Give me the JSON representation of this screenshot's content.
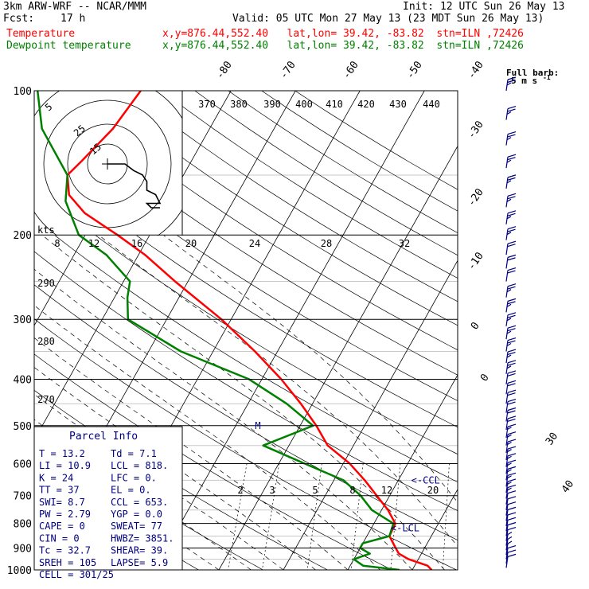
{
  "header": {
    "model": "3km ARW-WRF -- NCAR/MMM",
    "init": "Init: 12 UTC Sun 26 May 13",
    "fcst_label": "Fcst:",
    "fcst_value": "17 h",
    "valid": "Valid: 05 UTC Mon 27 May 13 (23 MDT Sun 26 May 13)",
    "temp_label": "Temperature",
    "dew_label": "Dewpoint temperature",
    "point_info": "x,y=876.44,552.40   lat,lon= 39.42, -83.82  stn=ILN ,72426",
    "full_barb": "Full barb:",
    "barb_units": "5 m s",
    "barb_units_sup": "-1"
  },
  "colors": {
    "temperature": "#ff0000",
    "dewpoint": "#008000",
    "info": "#000080"
  },
  "chart_data": {
    "type": "line",
    "pressure_levels": [
      100,
      200,
      300,
      400,
      500,
      600,
      700,
      800,
      900,
      1000
    ],
    "isotherms": [
      -90,
      -80,
      -70,
      -60,
      -50,
      -40,
      -30,
      -20,
      -10,
      0,
      10,
      20,
      30,
      40
    ],
    "isotherm_labels": [
      "-80",
      "-70",
      "-60",
      "-50",
      "-40",
      "-30",
      "-20",
      "-10",
      "0",
      "10",
      "30",
      "40"
    ],
    "dry_adiabat_labels": [
      "370",
      "380",
      "390",
      "400",
      "410",
      "420",
      "430",
      "440",
      "290",
      "280",
      "270"
    ],
    "mixing_ratio_labels": [
      "2",
      "3",
      "5",
      "8",
      "12",
      "20"
    ],
    "hodograph": {
      "units": "kts",
      "ring_labels": [
        "5",
        "25",
        "15"
      ],
      "speed_labels": [
        "8",
        "12",
        "16",
        "20",
        "24",
        "28",
        "32"
      ],
      "trace": [
        [
          0,
          0
        ],
        [
          4,
          0
        ],
        [
          6,
          1.5
        ],
        [
          8,
          2.5
        ],
        [
          9,
          4
        ],
        [
          9,
          6
        ],
        [
          11,
          7
        ],
        [
          12,
          9
        ],
        [
          9,
          9
        ],
        [
          10,
          10
        ],
        [
          12,
          10
        ]
      ]
    },
    "series": [
      {
        "name": "Temperature",
        "points": [
          [
            1000,
            23.0
          ],
          [
            980,
            22.0
          ],
          [
            950,
            18.5
          ],
          [
            925,
            16.5
          ],
          [
            900,
            15.5
          ],
          [
            850,
            13.5
          ],
          [
            800,
            13.3
          ],
          [
            750,
            11.0
          ],
          [
            700,
            8.0
          ],
          [
            650,
            4.8
          ],
          [
            600,
            1.0
          ],
          [
            550,
            -4.0
          ],
          [
            500,
            -7.5
          ],
          [
            450,
            -11.8
          ],
          [
            400,
            -17.0
          ],
          [
            350,
            -23.5
          ],
          [
            300,
            -31.5
          ],
          [
            250,
            -42.0
          ],
          [
            220,
            -49.0
          ],
          [
            200,
            -55.0
          ],
          [
            180,
            -62.0
          ],
          [
            165,
            -66.0
          ],
          [
            150,
            -68.0
          ],
          [
            140,
            -67.0
          ],
          [
            120,
            -65.0
          ],
          [
            100,
            -64.0
          ]
        ]
      },
      {
        "name": "Dewpoint temperature",
        "points": [
          [
            1000,
            18.0
          ],
          [
            980,
            12.0
          ],
          [
            950,
            10.0
          ],
          [
            925,
            12.0
          ],
          [
            900,
            10.0
          ],
          [
            880,
            10.0
          ],
          [
            850,
            13.5
          ],
          [
            800,
            13.0
          ],
          [
            750,
            8.5
          ],
          [
            700,
            5.5
          ],
          [
            650,
            1.5
          ],
          [
            600,
            -6.0
          ],
          [
            550,
            -14.0
          ],
          [
            500,
            -8.0
          ],
          [
            450,
            -14.0
          ],
          [
            400,
            -22.0
          ],
          [
            350,
            -35.0
          ],
          [
            300,
            -46.0
          ],
          [
            270,
            -48.0
          ],
          [
            250,
            -49.0
          ],
          [
            220,
            -55.0
          ],
          [
            200,
            -61.0
          ],
          [
            170,
            -66.0
          ],
          [
            150,
            -68.0
          ],
          [
            120,
            -76.0
          ],
          [
            100,
            -80.0
          ]
        ]
      }
    ],
    "annotations": [
      {
        "text": "<-CCL",
        "p": 650,
        "t": 12
      },
      {
        "text": "<-LCL",
        "p": 818,
        "t": 13
      },
      {
        "text": "M",
        "p": 500,
        "t": -17
      }
    ],
    "wind_barbs": {
      "levels": [
        100,
        115,
        130,
        145,
        160,
        175,
        190,
        205,
        220,
        235,
        250,
        270,
        290,
        310,
        330,
        350,
        370,
        390,
        410,
        430,
        450,
        470,
        490,
        510,
        530,
        550,
        570,
        590,
        610,
        630,
        650,
        670,
        690,
        710,
        730,
        750,
        770,
        790,
        810,
        830,
        850,
        870,
        890,
        910,
        930,
        950,
        970,
        990
      ],
      "speed_kt": [
        25,
        25,
        25,
        25,
        25,
        25,
        25,
        25,
        20,
        20,
        20,
        25,
        25,
        25,
        25,
        25,
        25,
        25,
        20,
        20,
        20,
        20,
        20,
        20,
        15,
        15,
        15,
        15,
        15,
        15,
        15,
        15,
        15,
        15,
        10,
        10,
        10,
        10,
        10,
        10,
        10,
        10,
        5,
        5,
        5,
        10,
        10,
        10
      ]
    }
  },
  "parcel": {
    "title": "Parcel Info",
    "rows": [
      [
        "T  =   13.2",
        "Td  =   7.1"
      ],
      [
        "LI =   10.9",
        "LCL =  818."
      ],
      [
        "K  =     24",
        "LFC =     0."
      ],
      [
        "TT =     37",
        "EL  =     0."
      ],
      [
        "SWI=    8.7",
        "CCL =  653."
      ],
      [
        "PW =   2.79",
        "YGP =   0.0"
      ],
      [
        "CAPE =    0",
        "SWEAT=    77"
      ],
      [
        "CIN  =    0",
        "HWBZ= 3851."
      ],
      [
        "Tc  =  32.7",
        "SHEAR=   39."
      ],
      [
        "SREH =  105",
        "LAPSE=   5.9"
      ],
      [
        "CELL = 301/25",
        ""
      ]
    ]
  }
}
